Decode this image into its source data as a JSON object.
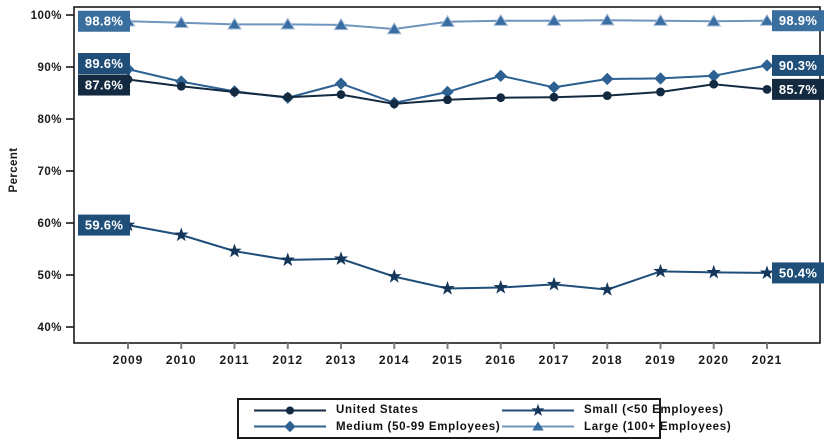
{
  "chart_data": {
    "type": "line",
    "title": "",
    "ylabel": "Percent",
    "x_labels": [
      "2009",
      "2010",
      "2011",
      "2012",
      "2013",
      "2014",
      "2015",
      "2016",
      "2017",
      "2018",
      "2019",
      "2020",
      "2021"
    ],
    "y_tick_labels": [
      "40%",
      "50%",
      "60%",
      "70%",
      "80%",
      "90%",
      "100%"
    ],
    "y_tick_values": [
      40,
      50,
      60,
      70,
      80,
      90,
      100
    ],
    "ylim": [
      40,
      100
    ],
    "grid": "off",
    "legend_position": "bottom",
    "series": [
      {
        "name": "United States",
        "marker": "circle",
        "color": "#132a40",
        "marker_color": "#132a40",
        "label_bg": "#132a40",
        "start_label": "87.6%",
        "end_label": "85.7%",
        "values": [
          87.6,
          86.3,
          85.2,
          84.2,
          84.7,
          82.9,
          83.7,
          84.1,
          84.2,
          84.5,
          85.2,
          86.7,
          85.7
        ]
      },
      {
        "name": "Medium (50-99 Employees)",
        "marker": "diamond",
        "color": "#2d6191",
        "marker_color": "#2d6191",
        "label_bg": "#1f4e79",
        "start_label": "89.6%",
        "end_label": "90.3%",
        "values": [
          89.6,
          87.2,
          85.3,
          84.1,
          86.8,
          83.1,
          85.2,
          88.3,
          86.1,
          87.7,
          87.8,
          88.3,
          90.3
        ]
      },
      {
        "name": "Small (<50 Employees)",
        "marker": "star",
        "color": "#1f4e79",
        "marker_color": "#14365a",
        "label_bg": "#1f4e79",
        "start_label": "59.6%",
        "end_label": "50.4%",
        "values": [
          59.6,
          57.7,
          54.6,
          52.9,
          53.1,
          49.7,
          47.4,
          47.6,
          48.2,
          47.2,
          50.7,
          50.5,
          50.4
        ]
      },
      {
        "name": "Large (100+ Employees)",
        "marker": "triangle",
        "color": "#6f94bd",
        "marker_color": "#3a6ea3",
        "marker_outline": "#a5bcd6",
        "label_bg": "#3a6e9e",
        "start_label": "98.8%",
        "end_label": "98.9%",
        "values": [
          98.8,
          98.5,
          98.2,
          98.2,
          98.1,
          97.3,
          98.7,
          98.9,
          98.9,
          99.0,
          98.9,
          98.8,
          98.9
        ]
      }
    ]
  }
}
